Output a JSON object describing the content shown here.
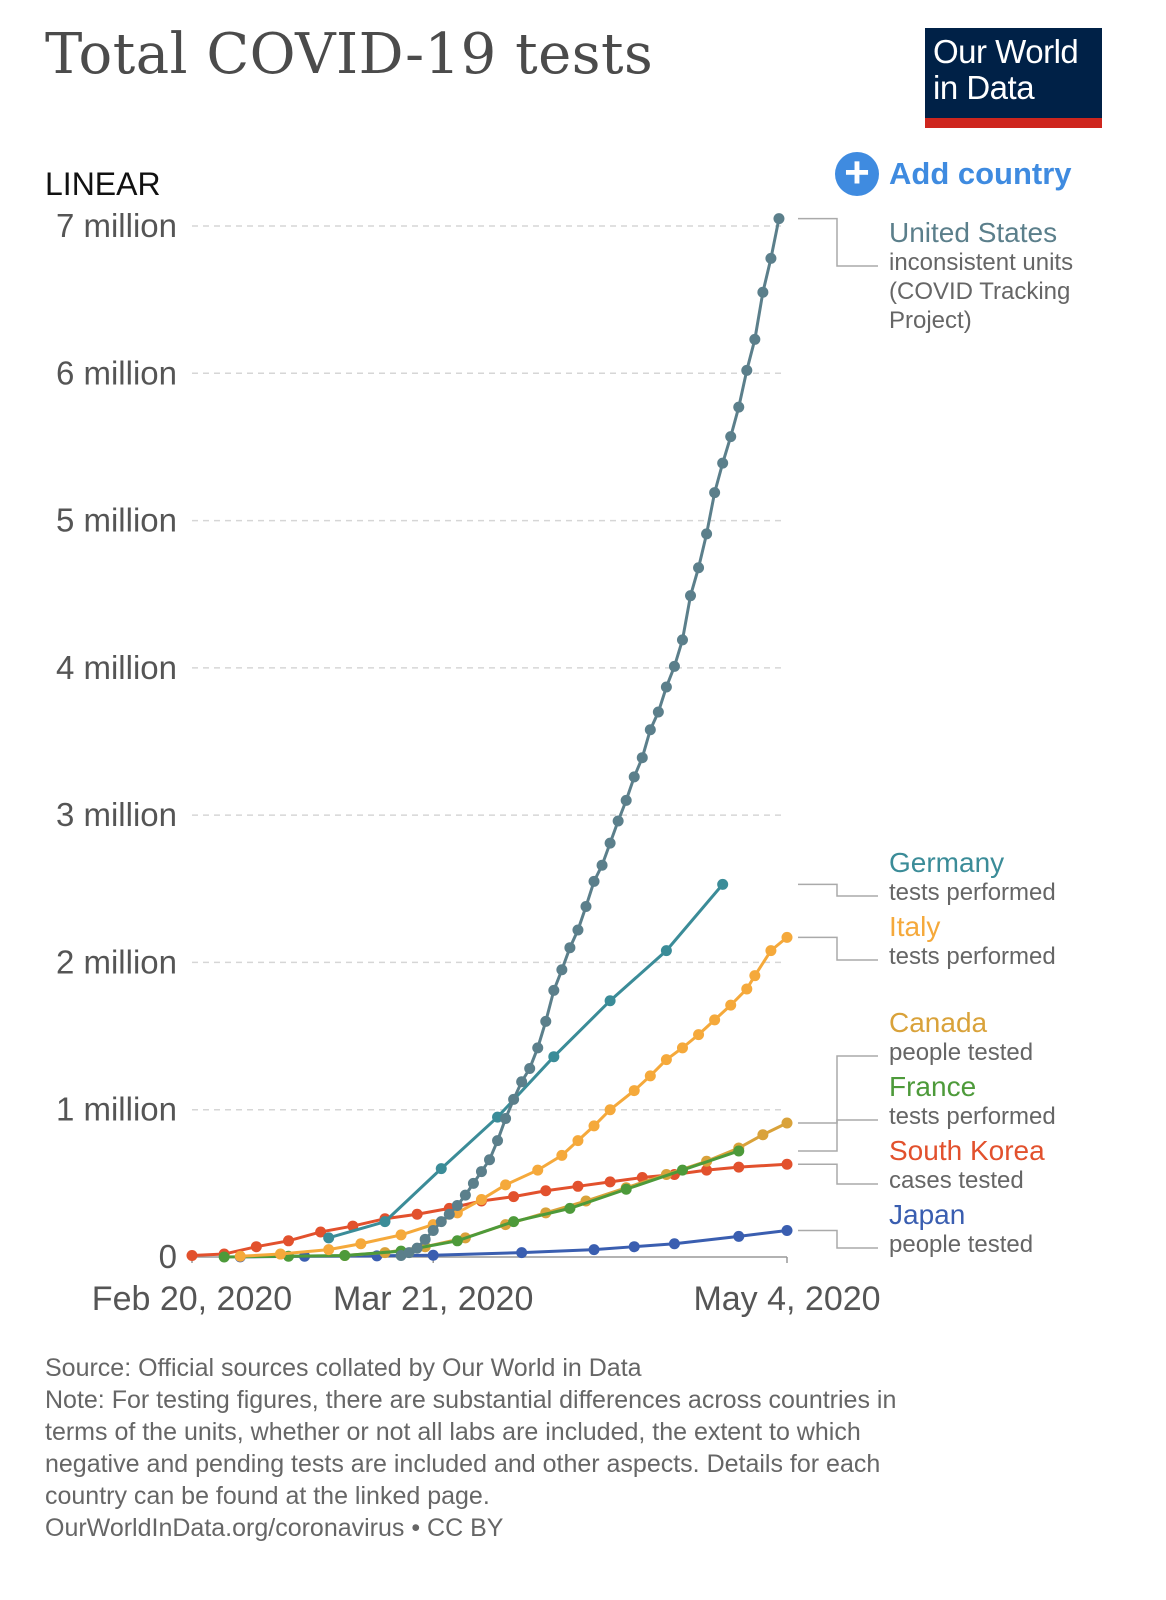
{
  "title": "Total COVID-19 tests",
  "logo": {
    "line1": "Our World",
    "line2": "in Data",
    "bg": "#002147",
    "accent": "#ce261e"
  },
  "scale_label": "LINEAR",
  "add_country": {
    "icon": "plus-circle-icon",
    "label": "Add country",
    "color": "#3f8be0"
  },
  "footer": {
    "source": "Source: Official sources collated by Our World in Data",
    "note_lines": [
      "Note: For testing figures, there are substantial differences across countries in",
      "terms of the units, whether or not all labs are included, the extent to which",
      "negative and pending tests are included and other aspects. Details for each",
      "country can be found at the linked page."
    ],
    "license": "OurWorldInData.org/coronavirus • CC BY"
  },
  "chart_data": {
    "type": "line",
    "title": "Total COVID-19 tests",
    "xlabel": "",
    "ylabel": "",
    "x_type": "date",
    "xlim": [
      "2020-02-20",
      "2020-05-04"
    ],
    "x_ticks": [
      {
        "date": "2020-02-20",
        "label": "Feb 20, 2020"
      },
      {
        "date": "2020-03-21",
        "label": "Mar 21, 2020"
      },
      {
        "date": "2020-05-04",
        "label": "May 4, 2020"
      }
    ],
    "ylim": [
      0,
      7000000
    ],
    "y_ticks": [
      {
        "value": 0,
        "label": "0"
      },
      {
        "value": 1000000,
        "label": "1 million"
      },
      {
        "value": 2000000,
        "label": "2 million"
      },
      {
        "value": 3000000,
        "label": "3 million"
      },
      {
        "value": 4000000,
        "label": "4 million"
      },
      {
        "value": 5000000,
        "label": "5 million"
      },
      {
        "value": 6000000,
        "label": "6 million"
      },
      {
        "value": 7000000,
        "label": "7 million"
      }
    ],
    "grid": "horizontal dashed",
    "legend": "right (end-of-line labels)",
    "series": [
      {
        "name": "United States",
        "sub": "inconsistent units (COVID Tracking Project)",
        "sub_lines": [
          "inconsistent units",
          "(COVID Tracking",
          "Project)"
        ],
        "color": "#5b7f8b",
        "points": [
          [
            "2020-03-17",
            10000
          ],
          [
            "2020-03-18",
            30000
          ],
          [
            "2020-03-19",
            60000
          ],
          [
            "2020-03-20",
            120000
          ],
          [
            "2020-03-21",
            180000
          ],
          [
            "2020-03-22",
            240000
          ],
          [
            "2020-03-23",
            290000
          ],
          [
            "2020-03-24",
            350000
          ],
          [
            "2020-03-25",
            420000
          ],
          [
            "2020-03-26",
            500000
          ],
          [
            "2020-03-27",
            580000
          ],
          [
            "2020-03-28",
            660000
          ],
          [
            "2020-03-29",
            790000
          ],
          [
            "2020-03-30",
            940000
          ],
          [
            "2020-03-31",
            1070000
          ],
          [
            "2020-04-01",
            1190000
          ],
          [
            "2020-04-02",
            1280000
          ],
          [
            "2020-04-03",
            1420000
          ],
          [
            "2020-04-04",
            1600000
          ],
          [
            "2020-04-05",
            1810000
          ],
          [
            "2020-04-06",
            1950000
          ],
          [
            "2020-04-07",
            2100000
          ],
          [
            "2020-04-08",
            2220000
          ],
          [
            "2020-04-09",
            2380000
          ],
          [
            "2020-04-10",
            2550000
          ],
          [
            "2020-04-11",
            2660000
          ],
          [
            "2020-04-12",
            2810000
          ],
          [
            "2020-04-13",
            2960000
          ],
          [
            "2020-04-14",
            3100000
          ],
          [
            "2020-04-15",
            3260000
          ],
          [
            "2020-04-16",
            3390000
          ],
          [
            "2020-04-17",
            3580000
          ],
          [
            "2020-04-18",
            3700000
          ],
          [
            "2020-04-19",
            3870000
          ],
          [
            "2020-04-20",
            4010000
          ],
          [
            "2020-04-21",
            4190000
          ],
          [
            "2020-04-22",
            4490000
          ],
          [
            "2020-04-23",
            4680000
          ],
          [
            "2020-04-24",
            4910000
          ],
          [
            "2020-04-25",
            5190000
          ],
          [
            "2020-04-26",
            5390000
          ],
          [
            "2020-04-27",
            5570000
          ],
          [
            "2020-04-28",
            5770000
          ],
          [
            "2020-04-29",
            6020000
          ],
          [
            "2020-04-30",
            6230000
          ],
          [
            "2020-05-01",
            6550000
          ],
          [
            "2020-05-02",
            6780000
          ],
          [
            "2020-05-03",
            7050000
          ]
        ]
      },
      {
        "name": "Germany",
        "sub": "tests performed",
        "sub_lines": [
          "tests performed"
        ],
        "color": "#3b8c98",
        "points": [
          [
            "2020-03-08",
            130000
          ],
          [
            "2020-03-15",
            240000
          ],
          [
            "2020-03-22",
            600000
          ],
          [
            "2020-03-29",
            950000
          ],
          [
            "2020-04-05",
            1360000
          ],
          [
            "2020-04-12",
            1740000
          ],
          [
            "2020-04-19",
            2080000
          ],
          [
            "2020-04-26",
            2530000
          ]
        ]
      },
      {
        "name": "Italy",
        "sub": "tests performed",
        "sub_lines": [
          "tests performed"
        ],
        "color": "#f5a93b",
        "points": [
          [
            "2020-02-26",
            5000
          ],
          [
            "2020-03-02",
            20000
          ],
          [
            "2020-03-08",
            50000
          ],
          [
            "2020-03-12",
            90000
          ],
          [
            "2020-03-17",
            150000
          ],
          [
            "2020-03-21",
            220000
          ],
          [
            "2020-03-24",
            300000
          ],
          [
            "2020-03-27",
            390000
          ],
          [
            "2020-03-30",
            490000
          ],
          [
            "2020-04-03",
            590000
          ],
          [
            "2020-04-06",
            690000
          ],
          [
            "2020-04-08",
            790000
          ],
          [
            "2020-04-10",
            890000
          ],
          [
            "2020-04-12",
            1000000
          ],
          [
            "2020-04-15",
            1130000
          ],
          [
            "2020-04-17",
            1230000
          ],
          [
            "2020-04-19",
            1340000
          ],
          [
            "2020-04-21",
            1420000
          ],
          [
            "2020-04-23",
            1510000
          ],
          [
            "2020-04-25",
            1610000
          ],
          [
            "2020-04-27",
            1710000
          ],
          [
            "2020-04-29",
            1820000
          ],
          [
            "2020-04-30",
            1910000
          ],
          [
            "2020-05-02",
            2080000
          ],
          [
            "2020-05-04",
            2170000
          ]
        ]
      },
      {
        "name": "Canada",
        "sub": "people tested",
        "sub_lines": [
          "people tested"
        ],
        "color": "#d9a23a",
        "points": [
          [
            "2020-03-10",
            10000
          ],
          [
            "2020-03-15",
            30000
          ],
          [
            "2020-03-20",
            70000
          ],
          [
            "2020-03-25",
            130000
          ],
          [
            "2020-03-30",
            220000
          ],
          [
            "2020-04-04",
            300000
          ],
          [
            "2020-04-09",
            380000
          ],
          [
            "2020-04-14",
            470000
          ],
          [
            "2020-04-19",
            560000
          ],
          [
            "2020-04-24",
            650000
          ],
          [
            "2020-04-28",
            740000
          ],
          [
            "2020-05-01",
            830000
          ],
          [
            "2020-05-04",
            910000
          ]
        ]
      },
      {
        "name": "France",
        "sub": "tests performed",
        "sub_lines": [
          "tests performed"
        ],
        "color": "#4d9a3a",
        "points": [
          [
            "2020-02-24",
            0
          ],
          [
            "2020-03-03",
            5000
          ],
          [
            "2020-03-10",
            10000
          ],
          [
            "2020-03-17",
            40000
          ],
          [
            "2020-03-24",
            110000
          ],
          [
            "2020-03-31",
            240000
          ],
          [
            "2020-04-07",
            330000
          ],
          [
            "2020-04-14",
            460000
          ],
          [
            "2020-04-21",
            590000
          ],
          [
            "2020-04-28",
            720000
          ]
        ]
      },
      {
        "name": "South Korea",
        "sub": "cases tested",
        "sub_lines": [
          "cases tested"
        ],
        "color": "#e2512d",
        "points": [
          [
            "2020-02-20",
            10000
          ],
          [
            "2020-02-24",
            20000
          ],
          [
            "2020-02-28",
            70000
          ],
          [
            "2020-03-03",
            110000
          ],
          [
            "2020-03-07",
            170000
          ],
          [
            "2020-03-11",
            210000
          ],
          [
            "2020-03-15",
            260000
          ],
          [
            "2020-03-19",
            290000
          ],
          [
            "2020-03-23",
            330000
          ],
          [
            "2020-03-27",
            380000
          ],
          [
            "2020-03-31",
            410000
          ],
          [
            "2020-04-04",
            450000
          ],
          [
            "2020-04-08",
            480000
          ],
          [
            "2020-04-12",
            510000
          ],
          [
            "2020-04-16",
            540000
          ],
          [
            "2020-04-20",
            560000
          ],
          [
            "2020-04-24",
            590000
          ],
          [
            "2020-04-28",
            610000
          ],
          [
            "2020-05-04",
            630000
          ]
        ]
      },
      {
        "name": "Japan",
        "sub": "people tested",
        "sub_lines": [
          "people tested"
        ],
        "color": "#3a5eb0",
        "points": [
          [
            "2020-02-26",
            1000
          ],
          [
            "2020-03-05",
            5000
          ],
          [
            "2020-03-14",
            8000
          ],
          [
            "2020-03-21",
            12000
          ],
          [
            "2020-04-01",
            30000
          ],
          [
            "2020-04-10",
            50000
          ],
          [
            "2020-04-15",
            70000
          ],
          [
            "2020-04-20",
            90000
          ],
          [
            "2020-04-28",
            140000
          ],
          [
            "2020-05-04",
            180000
          ]
        ]
      }
    ]
  }
}
